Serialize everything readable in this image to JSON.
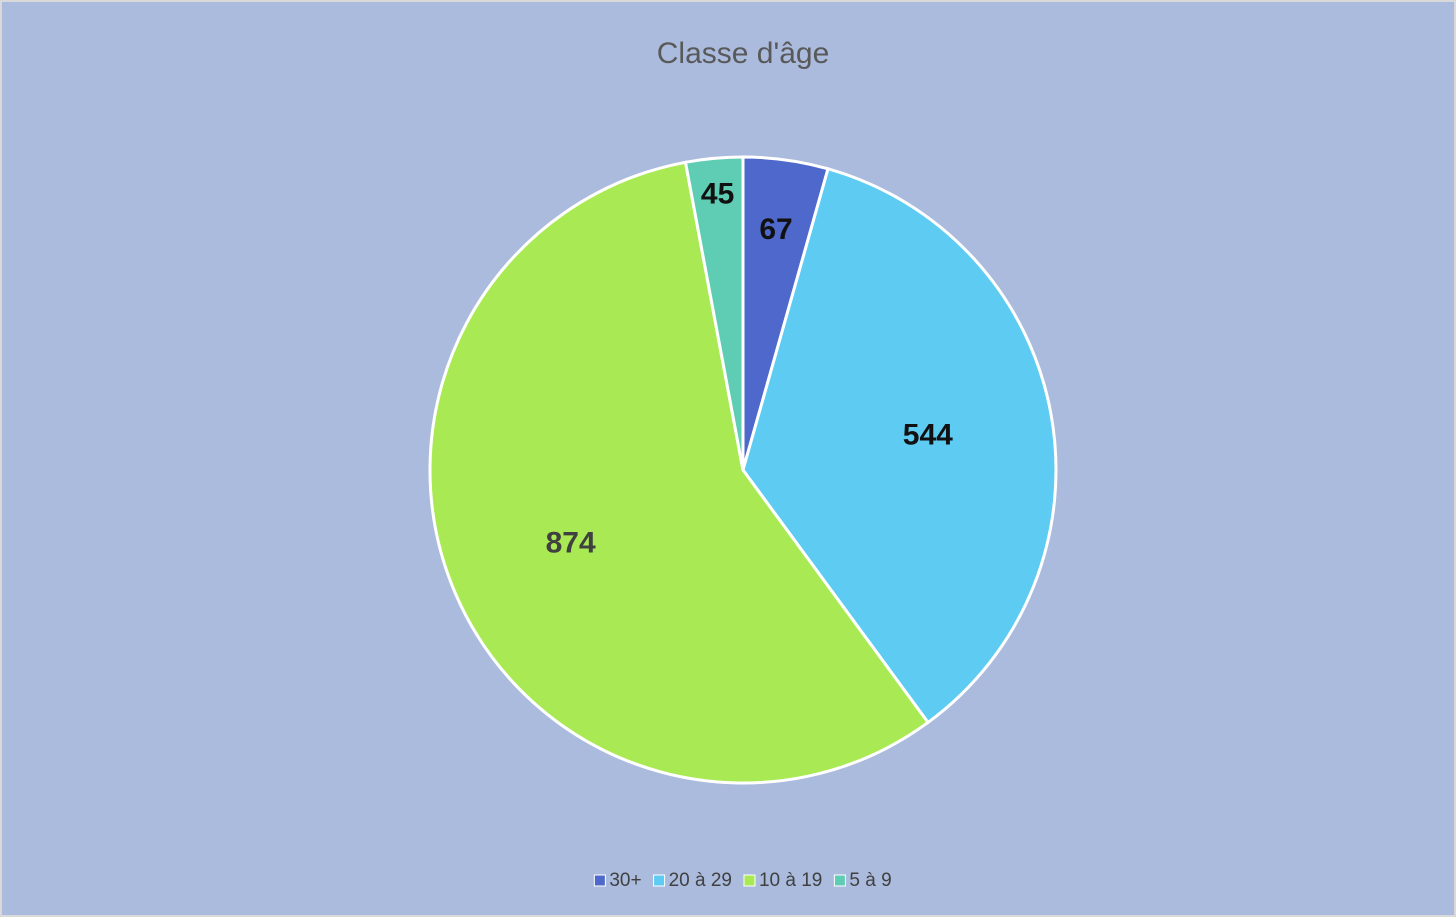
{
  "chart_data": {
    "type": "pie",
    "title": "Classe d'âge",
    "categories": [
      "30+",
      "20 à 29",
      "10 à 19",
      "5 à 9"
    ],
    "values": [
      67,
      544,
      874,
      45
    ],
    "colors": [
      "#4f68cb",
      "#5ecbf2",
      "#a9ea54",
      "#5ecdb3"
    ],
    "legend": "bottom"
  }
}
